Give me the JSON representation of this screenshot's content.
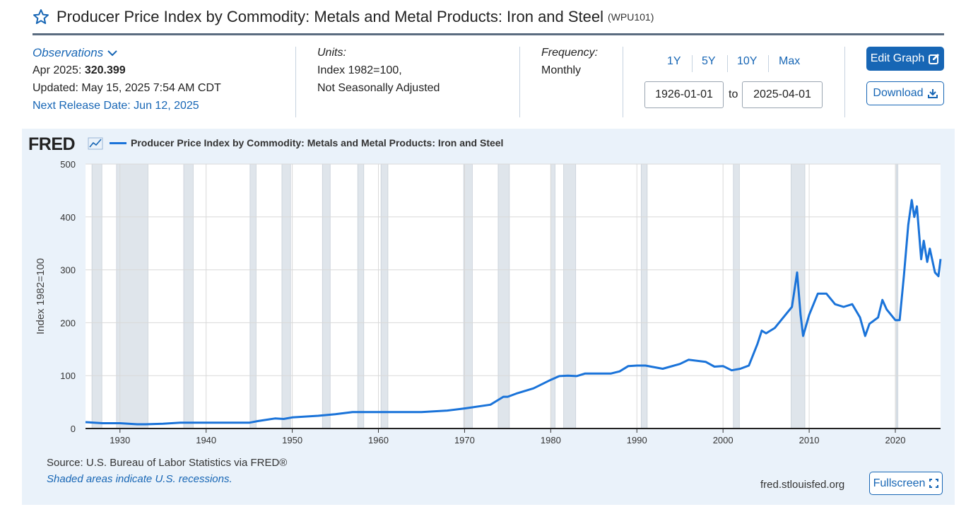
{
  "header": {
    "title": "Producer Price Index by Commodity: Metals and Metal Products: Iron and Steel",
    "series_id": "(WPU101)"
  },
  "observations": {
    "label": "Observations",
    "latest_label": "Apr 2025:",
    "latest_value": "320.399",
    "updated": "Updated: May 15, 2025 7:54 AM CDT",
    "next_release": "Next Release Date: Jun 12, 2025"
  },
  "units": {
    "label": "Units:",
    "line1": "Index 1982=100,",
    "line2": "Not Seasonally Adjusted"
  },
  "frequency": {
    "label": "Frequency:",
    "value": "Monthly"
  },
  "range": {
    "buttons": [
      "1Y",
      "5Y",
      "10Y",
      "Max"
    ],
    "start": "1926-01-01",
    "to_label": "to",
    "end": "2025-04-01"
  },
  "actions": {
    "edit_graph": "Edit Graph",
    "download": "Download",
    "fullscreen": "Fullscreen"
  },
  "footer": {
    "source": "Source: U.S. Bureau of Labor Statistics via FRED®",
    "recession_note": "Shaded areas indicate U.S. recessions.",
    "url": "fred.stlouisfed.org"
  },
  "brand": {
    "logo": "FRED",
    "accent": "#1766b5",
    "line_color": "#1a73d9",
    "recession_color": "#dfe5eb"
  },
  "chart_data": {
    "type": "line",
    "title": "",
    "ylabel": "Index 1982=100",
    "xlabel": "",
    "ylim": [
      0,
      500
    ],
    "yticks": [
      0,
      100,
      200,
      300,
      400,
      500
    ],
    "xlim": [
      1926.0,
      2025.25
    ],
    "xticks": [
      1930,
      1940,
      1950,
      1960,
      1970,
      1980,
      1990,
      2000,
      2010,
      2020
    ],
    "grid": true,
    "legend_position": "top-left",
    "series": [
      {
        "name": "Producer Price Index by Commodity: Metals and Metal Products: Iron and Steel",
        "x": [
          1926,
          1928,
          1930,
          1932,
          1933,
          1935,
          1937,
          1939,
          1941,
          1945,
          1946,
          1948,
          1949,
          1950,
          1951,
          1953,
          1955,
          1957,
          1958,
          1960,
          1965,
          1968,
          1970,
          1973,
          1974,
          1974.5,
          1975,
          1976,
          1978,
          1980,
          1981,
          1982,
          1983,
          1984,
          1985,
          1987,
          1988,
          1989,
          1990,
          1991,
          1993,
          1995,
          1996,
          1998,
          1999,
          2000,
          2001,
          2002,
          2003,
          2004,
          2004.5,
          2005,
          2006,
          2007,
          2008,
          2008.6,
          2009,
          2009.3,
          2010,
          2011,
          2012,
          2013,
          2014,
          2015,
          2015.9,
          2016.5,
          2017,
          2018,
          2018.5,
          2019,
          2020,
          2020.5,
          2021,
          2021.5,
          2021.9,
          2022.2,
          2022.5,
          2023,
          2023.3,
          2023.7,
          2024,
          2024.6,
          2025,
          2025.25
        ],
        "y": [
          12,
          10,
          10,
          8,
          8,
          9,
          11,
          11,
          11,
          11,
          14,
          19,
          18,
          21,
          22,
          24,
          27,
          31,
          31,
          31,
          31,
          34,
          38,
          45,
          55,
          60,
          60,
          66,
          76,
          92,
          99,
          100,
          99,
          104,
          104,
          104,
          108,
          118,
          119,
          119,
          113,
          122,
          130,
          126,
          117,
          118,
          110,
          113,
          119,
          160,
          185,
          180,
          190,
          210,
          230,
          295,
          215,
          175,
          215,
          255,
          255,
          235,
          230,
          235,
          210,
          175,
          198,
          210,
          243,
          225,
          205,
          205,
          290,
          385,
          432,
          400,
          420,
          320,
          355,
          315,
          340,
          295,
          288,
          320.399
        ]
      }
    ],
    "recessions": [
      [
        1926.75,
        1927.9
      ],
      [
        1929.6,
        1933.25
      ],
      [
        1937.4,
        1938.5
      ],
      [
        1945.1,
        1945.8
      ],
      [
        1948.8,
        1949.8
      ],
      [
        1953.5,
        1954.4
      ],
      [
        1957.6,
        1958.3
      ],
      [
        1960.3,
        1961.1
      ],
      [
        1969.9,
        1970.9
      ],
      [
        1973.9,
        1975.2
      ],
      [
        1980.0,
        1980.5
      ],
      [
        1981.5,
        1982.9
      ],
      [
        1990.5,
        1991.2
      ],
      [
        2001.2,
        2001.9
      ],
      [
        2007.9,
        2009.5
      ],
      [
        2020.1,
        2020.3
      ]
    ]
  }
}
